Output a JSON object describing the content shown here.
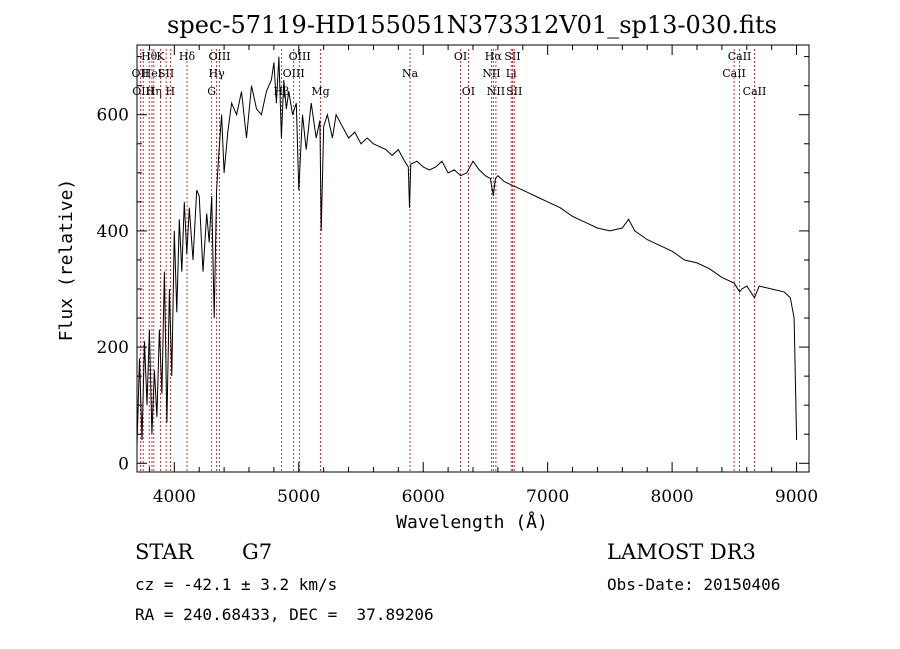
{
  "chart_data": {
    "type": "line",
    "title": "spec-57119-HD155051N373312V01_sp13-030.fits",
    "xlabel": "Wavelength (Å)",
    "ylabel": "Flux (relative)",
    "xlim": [
      3700,
      9100
    ],
    "ylim": [
      -15,
      720
    ],
    "xticks": [
      4000,
      5000,
      6000,
      7000,
      8000,
      9000
    ],
    "xtick_labels": [
      "4000",
      "5000",
      "6000",
      "7000",
      "8000",
      "9000"
    ],
    "yticks": [
      0,
      200,
      400,
      600
    ],
    "ytick_labels": [
      "0",
      "200",
      "400",
      "600"
    ],
    "grid": false,
    "series": [
      {
        "name": "spectrum",
        "x": [
          3700,
          3720,
          3740,
          3760,
          3780,
          3800,
          3820,
          3840,
          3860,
          3880,
          3900,
          3920,
          3940,
          3960,
          3980,
          4000,
          4020,
          4040,
          4060,
          4080,
          4100,
          4120,
          4150,
          4180,
          4200,
          4230,
          4260,
          4280,
          4300,
          4320,
          4340,
          4360,
          4380,
          4400,
          4430,
          4460,
          4500,
          4540,
          4580,
          4620,
          4660,
          4700,
          4740,
          4780,
          4800,
          4820,
          4840,
          4860,
          4880,
          4900,
          4920,
          4950,
          4980,
          5000,
          5030,
          5060,
          5100,
          5140,
          5170,
          5180,
          5200,
          5230,
          5270,
          5300,
          5350,
          5400,
          5450,
          5500,
          5550,
          5600,
          5650,
          5700,
          5750,
          5800,
          5850,
          5880,
          5890,
          5900,
          5950,
          6000,
          6050,
          6100,
          6150,
          6200,
          6250,
          6300,
          6350,
          6400,
          6450,
          6500,
          6540,
          6563,
          6580,
          6600,
          6650,
          6700,
          6750,
          6800,
          6850,
          6900,
          7000,
          7100,
          7200,
          7300,
          7400,
          7500,
          7600,
          7650,
          7700,
          7800,
          7900,
          8000,
          8100,
          8200,
          8300,
          8400,
          8500,
          8542,
          8560,
          8600,
          8662,
          8700,
          8800,
          8900,
          8950,
          8980,
          9000
        ],
        "values": [
          30,
          180,
          40,
          210,
          100,
          230,
          50,
          160,
          80,
          230,
          120,
          330,
          70,
          300,
          150,
          400,
          260,
          420,
          330,
          450,
          360,
          440,
          350,
          470,
          460,
          330,
          430,
          380,
          460,
          250,
          470,
          540,
          600,
          500,
          570,
          620,
          600,
          640,
          560,
          650,
          610,
          600,
          640,
          660,
          690,
          620,
          700,
          560,
          660,
          610,
          640,
          600,
          620,
          470,
          600,
          540,
          620,
          560,
          590,
          400,
          580,
          600,
          560,
          600,
          580,
          560,
          570,
          550,
          560,
          550,
          545,
          540,
          530,
          540,
          520,
          510,
          440,
          515,
          520,
          510,
          505,
          510,
          520,
          500,
          505,
          495,
          500,
          520,
          505,
          495,
          490,
          460,
          490,
          495,
          485,
          480,
          475,
          470,
          465,
          460,
          450,
          440,
          425,
          415,
          405,
          400,
          405,
          420,
          400,
          385,
          375,
          365,
          350,
          345,
          335,
          320,
          310,
          295,
          300,
          305,
          285,
          305,
          300,
          295,
          285,
          250,
          40
        ]
      }
    ],
    "line_markers": [
      {
        "wavelength": 3727,
        "label": "OII",
        "row": 1
      },
      {
        "wavelength": 3750,
        "label": "OIII",
        "row": 2
      },
      {
        "wavelength": 3798,
        "label": "Hθ",
        "row": 0
      },
      {
        "wavelength": 3820,
        "label": "HeI",
        "row": 1
      },
      {
        "wavelength": 3835,
        "label": "Hη",
        "row": 2
      },
      {
        "wavelength": 3889,
        "label": "K",
        "row": 0
      },
      {
        "wavelength": 3934,
        "label": "SII",
        "row": 1
      },
      {
        "wavelength": 3968,
        "label": "H",
        "row": 2
      },
      {
        "wavelength": 4102,
        "label": "Hδ",
        "row": 0
      },
      {
        "wavelength": 4300,
        "label": "G",
        "row": 2
      },
      {
        "wavelength": 4340,
        "label": "Hγ",
        "row": 1
      },
      {
        "wavelength": 4363,
        "label": "OIII",
        "row": 0
      },
      {
        "wavelength": 4861,
        "label": "Hβ",
        "row": 2
      },
      {
        "wavelength": 4959,
        "label": "OIII",
        "row": 1
      },
      {
        "wavelength": 5007,
        "label": "OIII",
        "row": 0
      },
      {
        "wavelength": 5175,
        "label": "Mg",
        "row": 2
      },
      {
        "wavelength": 5894,
        "label": "Na",
        "row": 1
      },
      {
        "wavelength": 6300,
        "label": "OI",
        "row": 0
      },
      {
        "wavelength": 6363,
        "label": "OI",
        "row": 2
      },
      {
        "wavelength": 6548,
        "label": "NII",
        "row": 1
      },
      {
        "wavelength": 6563,
        "label": "Hα",
        "row": 0
      },
      {
        "wavelength": 6584,
        "label": "NII",
        "row": 2
      },
      {
        "wavelength": 6707,
        "label": "Li",
        "row": 1
      },
      {
        "wavelength": 6717,
        "label": "SII",
        "row": 0
      },
      {
        "wavelength": 6731,
        "label": "SII",
        "row": 2
      },
      {
        "wavelength": 8498,
        "label": "CaII",
        "row": 1
      },
      {
        "wavelength": 8542,
        "label": "CaII",
        "row": 0
      },
      {
        "wavelength": 8662,
        "label": "CaII",
        "row": 2
      }
    ]
  },
  "info": {
    "object_class": "STAR",
    "subclass": "G7",
    "survey": "LAMOST DR3",
    "redshift_text": "cz = -42.1 ± 3.2 km/s",
    "obs_date_text": "Obs-Date: 20150406",
    "coords_text": "RA = 240.68433, DEC =  37.89206"
  },
  "colors": {
    "axis": "#000000",
    "spectrum": "#000000",
    "marker": "#cc0000"
  }
}
